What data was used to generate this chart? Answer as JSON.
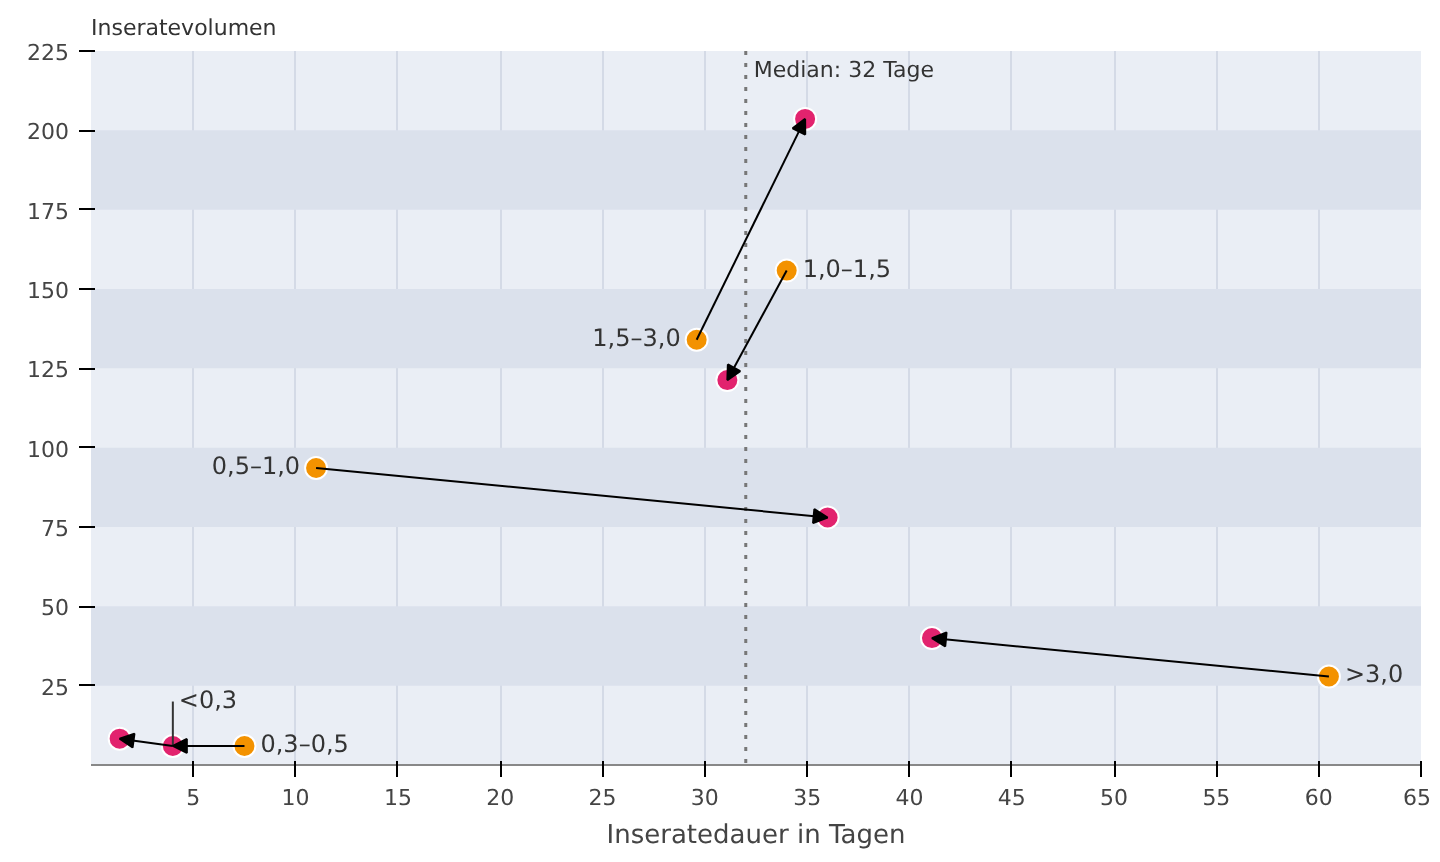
{
  "chart_data": {
    "type": "scatter",
    "ylabel": "Inseratevolumen",
    "xlabel": "Inseratedauer in Tagen",
    "series": [
      {
        "color": "#f39200",
        "x": [
          null,
          7.5,
          11,
          29.6,
          34,
          60.5
        ],
        "values": [
          null,
          6,
          93.6,
          134,
          155.8,
          27.9
        ]
      },
      {
        "color": "#e2236e",
        "x": [
          1.4,
          4,
          36,
          34.9,
          31.1,
          41.1
        ],
        "values": [
          8.3,
          6,
          78,
          203.6,
          121.3,
          40
        ]
      }
    ],
    "annotations": [
      {
        "text": "<0,3",
        "x": 4,
        "y": 6
      },
      {
        "text": "0,3–0,5",
        "x": 7.5,
        "y": 6
      },
      {
        "text": "0,5–1,0",
        "x": 11,
        "y": 93.6
      },
      {
        "text": "1,5–3,0",
        "x": 29.6,
        "y": 134
      },
      {
        "text": "1,0–1,5",
        "x": 34,
        "y": 155.8
      },
      {
        "text": ">3,0",
        "x": 60.5,
        "y": 27.9
      }
    ],
    "ref_lines": [
      {
        "axis": "x",
        "value": 32,
        "label": "Median: 32 Tage",
        "line_style": "dotted",
        "color": "#777777"
      }
    ],
    "xlim": [
      0,
      65
    ],
    "xticks": [
      5,
      10,
      15,
      20,
      25,
      30,
      35,
      40,
      45,
      50,
      55,
      60,
      65
    ],
    "ylim": [
      0,
      225
    ],
    "yticks": [
      25,
      50,
      75,
      100,
      125,
      150,
      175,
      200,
      225
    ],
    "grid": true,
    "marker": "circle"
  }
}
